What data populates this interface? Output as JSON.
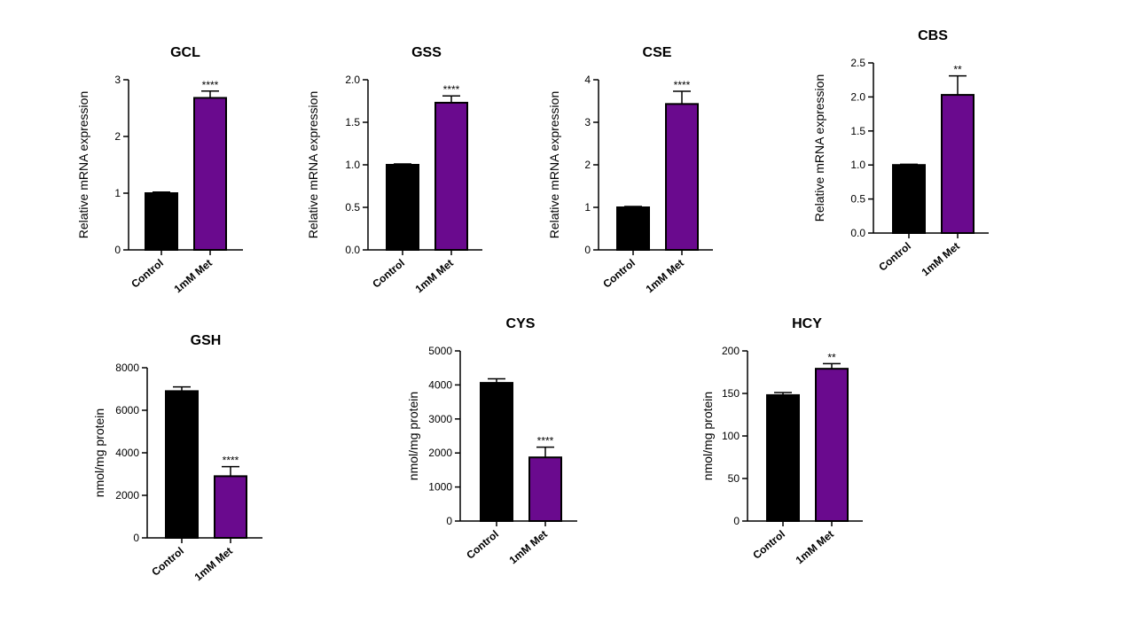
{
  "colors": {
    "control": "#000000",
    "treatment": "#6a0a8e",
    "axis": "#000000"
  },
  "chart_data": [
    {
      "type": "bar",
      "title": "GCL",
      "ylabel": "Relative mRNA expression",
      "categories": [
        "Control",
        "1mM Met"
      ],
      "values": [
        1.0,
        2.68
      ],
      "errors": [
        0.02,
        0.12
      ],
      "ylim": [
        0,
        3
      ],
      "yticks": [
        0,
        1,
        2,
        3
      ],
      "yticklabels": [
        "0",
        "1",
        "2",
        "3"
      ],
      "annotations": [
        "",
        "****"
      ]
    },
    {
      "type": "bar",
      "title": "GSS",
      "ylabel": "Relative mRNA expression",
      "categories": [
        "Control",
        "1mM Met"
      ],
      "values": [
        1.0,
        1.73
      ],
      "errors": [
        0.01,
        0.08
      ],
      "ylim": [
        0,
        2
      ],
      "yticks": [
        0,
        0.5,
        1,
        1.5,
        2
      ],
      "yticklabels": [
        "0.0",
        "0.5",
        "1.0",
        "1.5",
        "2.0"
      ],
      "annotations": [
        "",
        "****"
      ]
    },
    {
      "type": "bar",
      "title": "CSE",
      "ylabel": "Relative mRNA expression",
      "categories": [
        "Control",
        "1mM Met"
      ],
      "values": [
        1.0,
        3.43
      ],
      "errors": [
        0.02,
        0.3
      ],
      "ylim": [
        0,
        4
      ],
      "yticks": [
        0,
        1,
        2,
        3,
        4
      ],
      "yticklabels": [
        "0",
        "1",
        "2",
        "3",
        "4"
      ],
      "annotations": [
        "",
        "****"
      ]
    },
    {
      "type": "bar",
      "title": "CBS",
      "ylabel": "Relative mRNA expression",
      "categories": [
        "Control",
        "1mM Met"
      ],
      "values": [
        1.0,
        2.03
      ],
      "errors": [
        0.01,
        0.28
      ],
      "ylim": [
        0,
        2.5
      ],
      "yticks": [
        0,
        0.5,
        1,
        1.5,
        2,
        2.5
      ],
      "yticklabels": [
        "0.0",
        "0.5",
        "1.0",
        "1.5",
        "2.0",
        "2.5"
      ],
      "annotations": [
        "",
        "**"
      ]
    },
    {
      "type": "bar",
      "title": "GSH",
      "ylabel": "nmol/mg protein",
      "categories": [
        "Control",
        "1mM Met"
      ],
      "values": [
        6900,
        2900
      ],
      "errors": [
        200,
        450
      ],
      "ylim": [
        0,
        8000
      ],
      "yticks": [
        0,
        2000,
        4000,
        6000,
        8000
      ],
      "yticklabels": [
        "0",
        "2000",
        "4000",
        "6000",
        "8000"
      ],
      "annotations": [
        "",
        "****"
      ]
    },
    {
      "type": "bar",
      "title": "CYS",
      "ylabel": "nmol/mg protein",
      "categories": [
        "Control",
        "1mM Met"
      ],
      "values": [
        4060,
        1870
      ],
      "errors": [
        120,
        300
      ],
      "ylim": [
        0,
        5000
      ],
      "yticks": [
        0,
        1000,
        2000,
        3000,
        4000,
        5000
      ],
      "yticklabels": [
        "0",
        "1000",
        "2000",
        "3000",
        "4000",
        "5000"
      ],
      "annotations": [
        "",
        "****"
      ]
    },
    {
      "type": "bar",
      "title": "HCY",
      "ylabel": "nmol/mg protein",
      "categories": [
        "Control",
        "1mM Met"
      ],
      "values": [
        148,
        179
      ],
      "errors": [
        3,
        6
      ],
      "ylim": [
        0,
        200
      ],
      "yticks": [
        0,
        50,
        100,
        150,
        200
      ],
      "yticklabels": [
        "0",
        "50",
        "100",
        "150",
        "200"
      ],
      "annotations": [
        "",
        "**"
      ]
    }
  ]
}
